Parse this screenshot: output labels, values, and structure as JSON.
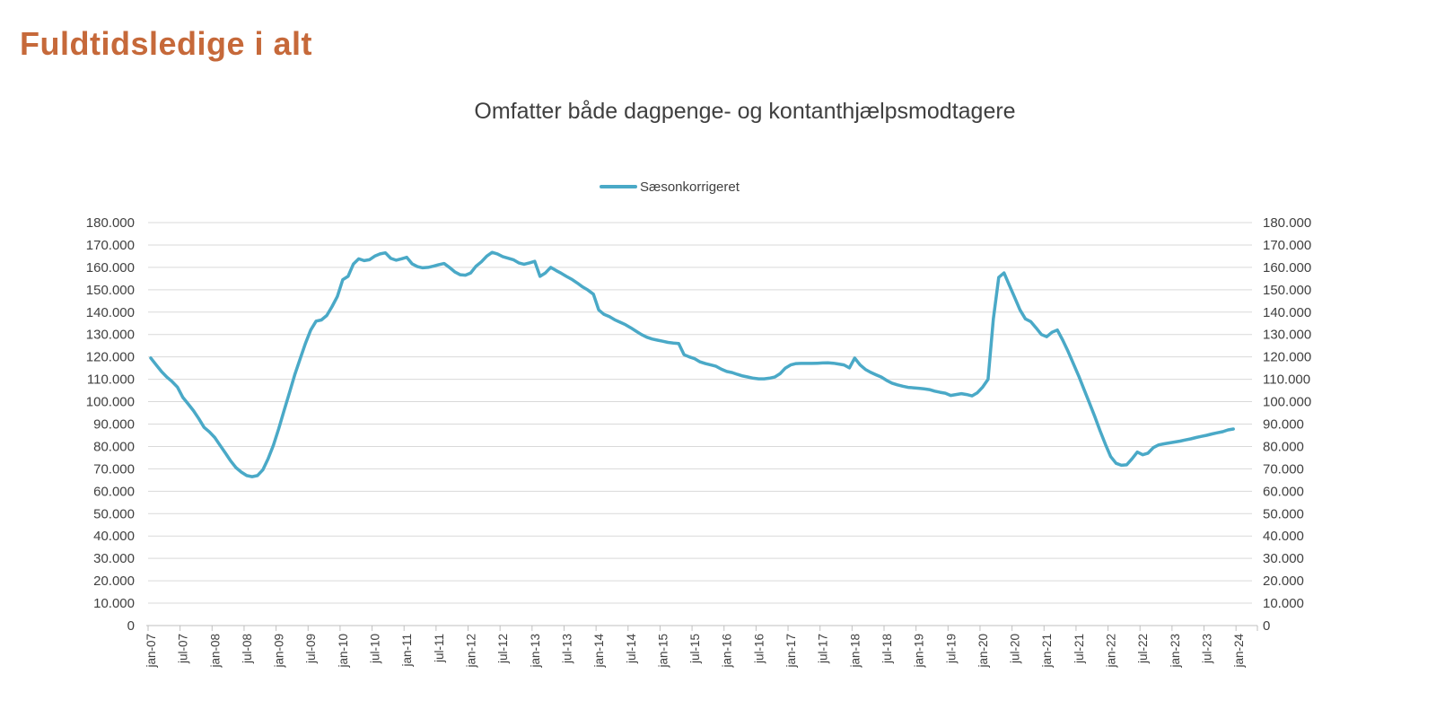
{
  "page": {
    "title": "Fuldtidsledige i alt"
  },
  "chart": {
    "subtitle": "Omfatter både dagpenge- og kontanthjælpsmodtagere",
    "legend": [
      {
        "label": "Sæsonkorrigeret",
        "color": "#4AA9C7"
      }
    ]
  },
  "colors": {
    "title": "#C6693A",
    "text": "#404040",
    "gridline": "#D9D9D9",
    "axis": "#BFBFBF",
    "series": "#4AA9C7",
    "background": "#FFFFFF"
  },
  "chart_data": {
    "type": "line",
    "title": "Omfatter både dagpenge- og kontanthjælpsmodtagere",
    "series_name": "Sæsonkorrigeret",
    "line_color": "#4AA9C7",
    "grid": true,
    "legend_position": "top-center",
    "dual_y_axis": true,
    "ylim": [
      0,
      180000
    ],
    "y_tick_step": 10000,
    "y_tick_labels": [
      "0",
      "10.000",
      "20.000",
      "30.000",
      "40.000",
      "50.000",
      "60.000",
      "70.000",
      "80.000",
      "90.000",
      "100.000",
      "110.000",
      "120.000",
      "130.000",
      "140.000",
      "150.000",
      "160.000",
      "170.000",
      "180.000"
    ],
    "x_interval": "monthly",
    "x_start": "jan-07",
    "x_end": "dec-23",
    "x_tick_every_months": 6,
    "x_tick_labels": [
      "jan-07",
      "jul-07",
      "jan-08",
      "jul-08",
      "jan-09",
      "jul-09",
      "jan-10",
      "jul-10",
      "jan-11",
      "jul-11",
      "jan-12",
      "jul-12",
      "jan-13",
      "jul-13",
      "jan-14",
      "jul-14",
      "jan-15",
      "jul-15",
      "jan-16",
      "jul-16",
      "jan-17",
      "jul-17",
      "jan-18",
      "jul-18",
      "jan-19",
      "jul-19",
      "jan-20",
      "jul-20",
      "jan-21",
      "jul-21",
      "jan-22",
      "jul-22",
      "jan-23",
      "jul-23",
      "jan-24"
    ],
    "values": [
      119500,
      116500,
      113500,
      111000,
      109000,
      106500,
      102000,
      99000,
      96000,
      92500,
      88500,
      86500,
      84000,
      80500,
      77000,
      73500,
      70500,
      68500,
      67000,
      66500,
      67000,
      69500,
      74500,
      80500,
      88000,
      96000,
      104000,
      112000,
      119000,
      126000,
      132000,
      136000,
      136500,
      138500,
      142500,
      147000,
      154500,
      156000,
      161500,
      163800,
      163000,
      163400,
      165000,
      166000,
      166500,
      164000,
      163200,
      163800,
      164500,
      161600,
      160300,
      159800,
      160000,
      160500,
      161200,
      161700,
      160000,
      158000,
      156700,
      156500,
      157500,
      160500,
      162500,
      165000,
      166700,
      166000,
      164800,
      164100,
      163400,
      162000,
      161400,
      162000,
      162700,
      156000,
      157500,
      160000,
      158600,
      157300,
      155900,
      154600,
      153000,
      151200,
      149800,
      148000,
      141000,
      139000,
      138000,
      136600,
      135500,
      134400,
      133000,
      131500,
      130000,
      128800,
      128000,
      127500,
      127000,
      126500,
      126200,
      126000,
      121000,
      120000,
      119200,
      117800,
      117000,
      116400,
      115800,
      114500,
      113500,
      113000,
      112200,
      111500,
      111000,
      110500,
      110200,
      110200,
      110500,
      111000,
      112500,
      115000,
      116400,
      117000,
      117100,
      117100,
      117100,
      117200,
      117300,
      117400,
      117200,
      116800,
      116400,
      115100,
      119500,
      116400,
      114400,
      113100,
      112000,
      111000,
      109500,
      108300,
      107500,
      106900,
      106400,
      106200,
      106000,
      105700,
      105400,
      104700,
      104200,
      103800,
      102800,
      103200,
      103600,
      103200,
      102600,
      104000,
      106500,
      110000,
      137000,
      155500,
      157500,
      152000,
      146500,
      141000,
      137000,
      135800,
      133000,
      130000,
      129000,
      131000,
      132000,
      127500,
      122500,
      117000,
      111500,
      105500,
      99500,
      93500,
      87000,
      81000,
      75500,
      72500,
      71600,
      71800,
      74500,
      77500,
      76300,
      77000,
      79500,
      80700,
      81200,
      81600,
      82000,
      82400,
      82900,
      83400,
      84000,
      84500,
      85000,
      85600,
      86100,
      86600,
      87400,
      87800
    ]
  }
}
